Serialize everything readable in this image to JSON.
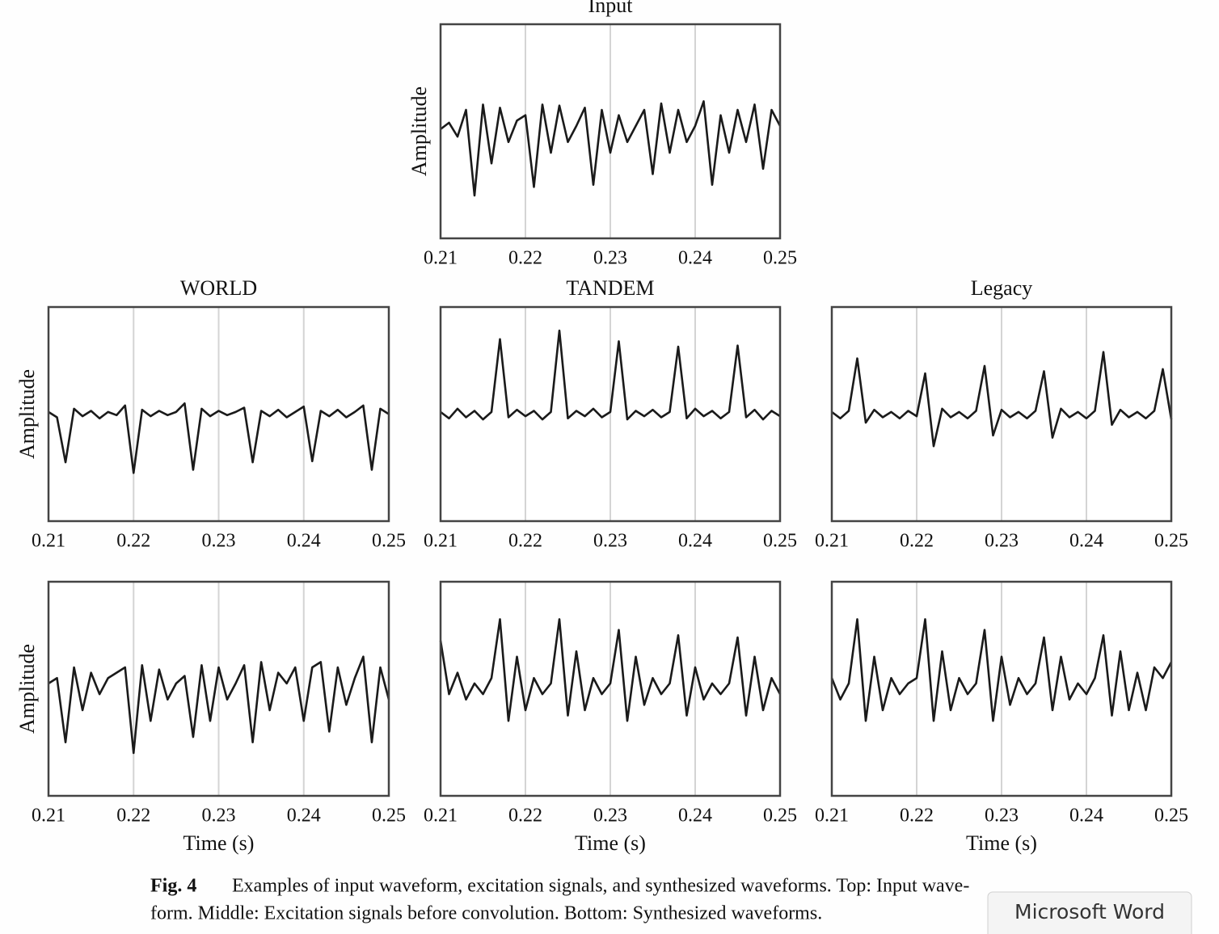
{
  "chart_data": [
    {
      "type": "line",
      "title": "Input",
      "ylabel": "Amplitude",
      "color": "#1a1a1a",
      "grid": true,
      "xlim": [
        0.21,
        0.25
      ],
      "xticks": [
        0.21,
        0.22,
        0.23,
        0.24,
        0.25
      ],
      "ylim": [
        -1,
        1
      ],
      "x": [
        0.21,
        0.211,
        0.212,
        0.213,
        0.214,
        0.215,
        0.216,
        0.217,
        0.218,
        0.219,
        0.22,
        0.221,
        0.222,
        0.223,
        0.224,
        0.225,
        0.226,
        0.227,
        0.228,
        0.229,
        0.23,
        0.231,
        0.232,
        0.233,
        0.234,
        0.235,
        0.236,
        0.237,
        0.238,
        0.239,
        0.24,
        0.241,
        0.242,
        0.243,
        0.244,
        0.245,
        0.246,
        0.247,
        0.248,
        0.249,
        0.25
      ],
      "values": [
        0.02,
        0.08,
        -0.05,
        0.2,
        -0.6,
        0.25,
        -0.3,
        0.22,
        -0.1,
        0.1,
        0.15,
        -0.52,
        0.25,
        -0.2,
        0.24,
        -0.1,
        0.05,
        0.22,
        -0.5,
        0.2,
        -0.2,
        0.15,
        -0.1,
        0.05,
        0.2,
        -0.4,
        0.26,
        -0.2,
        0.2,
        -0.1,
        0.05,
        0.28,
        -0.5,
        0.15,
        -0.2,
        0.2,
        -0.1,
        0.25,
        -0.35,
        0.2,
        0.05
      ]
    },
    {
      "type": "line",
      "title": "WORLD",
      "ylabel": "Amplitude",
      "color": "#1a1a1a",
      "grid": true,
      "xlim": [
        0.21,
        0.25
      ],
      "xticks": [
        0.21,
        0.22,
        0.23,
        0.24,
        0.25
      ],
      "ylim": [
        -1,
        1
      ],
      "x": [
        0.21,
        0.211,
        0.212,
        0.213,
        0.214,
        0.215,
        0.216,
        0.217,
        0.218,
        0.219,
        0.22,
        0.221,
        0.222,
        0.223,
        0.224,
        0.225,
        0.226,
        0.227,
        0.228,
        0.229,
        0.23,
        0.231,
        0.232,
        0.233,
        0.234,
        0.235,
        0.236,
        0.237,
        0.238,
        0.239,
        0.24,
        0.241,
        0.242,
        0.243,
        0.244,
        0.245,
        0.246,
        0.247,
        0.248,
        0.249,
        0.25
      ],
      "values": [
        0.02,
        -0.03,
        -0.45,
        0.05,
        -0.02,
        0.03,
        -0.04,
        0.02,
        -0.01,
        0.08,
        -0.55,
        0.04,
        -0.02,
        0.03,
        -0.01,
        0.02,
        0.1,
        -0.52,
        0.05,
        -0.02,
        0.03,
        -0.01,
        0.02,
        0.06,
        -0.45,
        0.03,
        -0.02,
        0.04,
        -0.03,
        0.02,
        0.07,
        -0.44,
        0.03,
        -0.02,
        0.04,
        -0.03,
        0.02,
        0.08,
        -0.52,
        0.05,
        0.0
      ]
    },
    {
      "type": "line",
      "title": "TANDEM",
      "color": "#1a1a1a",
      "grid": true,
      "xlim": [
        0.21,
        0.25
      ],
      "xticks": [
        0.21,
        0.22,
        0.23,
        0.24,
        0.25
      ],
      "ylim": [
        -1,
        1
      ],
      "x": [
        0.21,
        0.211,
        0.212,
        0.213,
        0.214,
        0.215,
        0.216,
        0.217,
        0.218,
        0.219,
        0.22,
        0.221,
        0.222,
        0.223,
        0.224,
        0.225,
        0.226,
        0.227,
        0.228,
        0.229,
        0.23,
        0.231,
        0.232,
        0.233,
        0.234,
        0.235,
        0.236,
        0.237,
        0.238,
        0.239,
        0.24,
        0.241,
        0.242,
        0.243,
        0.244,
        0.245,
        0.246,
        0.247,
        0.248,
        0.249,
        0.25
      ],
      "values": [
        0.02,
        -0.04,
        0.05,
        -0.03,
        0.03,
        -0.05,
        0.02,
        0.7,
        -0.03,
        0.04,
        -0.02,
        0.03,
        -0.05,
        0.02,
        0.78,
        -0.04,
        0.03,
        -0.02,
        0.05,
        -0.03,
        0.02,
        0.68,
        -0.05,
        0.03,
        -0.02,
        0.04,
        -0.03,
        0.02,
        0.63,
        -0.04,
        0.05,
        -0.02,
        0.03,
        -0.04,
        0.02,
        0.64,
        -0.03,
        0.04,
        -0.05,
        0.03,
        -0.02
      ]
    },
    {
      "type": "line",
      "title": "Legacy",
      "color": "#1a1a1a",
      "grid": true,
      "xlim": [
        0.21,
        0.25
      ],
      "xticks": [
        0.21,
        0.22,
        0.23,
        0.24,
        0.25
      ],
      "ylim": [
        -1,
        1
      ],
      "x": [
        0.21,
        0.211,
        0.212,
        0.213,
        0.214,
        0.215,
        0.216,
        0.217,
        0.218,
        0.219,
        0.22,
        0.221,
        0.222,
        0.223,
        0.224,
        0.225,
        0.226,
        0.227,
        0.228,
        0.229,
        0.23,
        0.231,
        0.232,
        0.233,
        0.234,
        0.235,
        0.236,
        0.237,
        0.238,
        0.239,
        0.24,
        0.241,
        0.242,
        0.243,
        0.244,
        0.245,
        0.246,
        0.247,
        0.248,
        0.249,
        0.25
      ],
      "values": [
        0.02,
        -0.04,
        0.03,
        0.52,
        -0.08,
        0.04,
        -0.03,
        0.02,
        -0.04,
        0.03,
        -0.02,
        0.38,
        -0.3,
        0.05,
        -0.03,
        0.02,
        -0.04,
        0.03,
        0.45,
        -0.2,
        0.04,
        -0.03,
        0.02,
        -0.04,
        0.03,
        0.4,
        -0.22,
        0.05,
        -0.03,
        0.02,
        -0.04,
        0.03,
        0.58,
        -0.1,
        0.04,
        -0.03,
        0.02,
        -0.04,
        0.03,
        0.42,
        -0.05
      ]
    },
    {
      "type": "line",
      "xlabel": "Time (s)",
      "ylabel": "Amplitude",
      "color": "#1a1a1a",
      "grid": true,
      "xlim": [
        0.21,
        0.25
      ],
      "xticks": [
        0.21,
        0.22,
        0.23,
        0.24,
        0.25
      ],
      "ylim": [
        -1,
        1
      ],
      "x": [
        0.21,
        0.211,
        0.212,
        0.213,
        0.214,
        0.215,
        0.216,
        0.217,
        0.218,
        0.219,
        0.22,
        0.221,
        0.222,
        0.223,
        0.224,
        0.225,
        0.226,
        0.227,
        0.228,
        0.229,
        0.23,
        0.231,
        0.232,
        0.233,
        0.234,
        0.235,
        0.236,
        0.237,
        0.238,
        0.239,
        0.24,
        0.241,
        0.242,
        0.243,
        0.244,
        0.245,
        0.246,
        0.247,
        0.248,
        0.249,
        0.25
      ],
      "values": [
        0.05,
        0.1,
        -0.5,
        0.2,
        -0.2,
        0.15,
        -0.05,
        0.1,
        0.15,
        0.2,
        -0.6,
        0.22,
        -0.3,
        0.18,
        -0.1,
        0.05,
        0.12,
        -0.45,
        0.22,
        -0.3,
        0.2,
        -0.1,
        0.05,
        0.22,
        -0.5,
        0.25,
        -0.2,
        0.15,
        0.05,
        0.2,
        -0.3,
        0.2,
        0.25,
        -0.4,
        0.2,
        -0.15,
        0.1,
        0.3,
        -0.5,
        0.2,
        -0.1
      ]
    },
    {
      "type": "line",
      "xlabel": "Time (s)",
      "color": "#1a1a1a",
      "grid": true,
      "xlim": [
        0.21,
        0.25
      ],
      "xticks": [
        0.21,
        0.22,
        0.23,
        0.24,
        0.25
      ],
      "ylim": [
        -1,
        1
      ],
      "x": [
        0.21,
        0.211,
        0.212,
        0.213,
        0.214,
        0.215,
        0.216,
        0.217,
        0.218,
        0.219,
        0.22,
        0.221,
        0.222,
        0.223,
        0.224,
        0.225,
        0.226,
        0.227,
        0.228,
        0.229,
        0.23,
        0.231,
        0.232,
        0.233,
        0.234,
        0.235,
        0.236,
        0.237,
        0.238,
        0.239,
        0.24,
        0.241,
        0.242,
        0.243,
        0.244,
        0.245,
        0.246,
        0.247,
        0.248,
        0.249,
        0.25
      ],
      "values": [
        0.45,
        -0.05,
        0.15,
        -0.1,
        0.05,
        -0.05,
        0.1,
        0.65,
        -0.3,
        0.3,
        -0.2,
        0.1,
        -0.05,
        0.05,
        0.65,
        -0.25,
        0.35,
        -0.2,
        0.1,
        -0.05,
        0.05,
        0.55,
        -0.3,
        0.3,
        -0.15,
        0.1,
        -0.05,
        0.05,
        0.5,
        -0.25,
        0.2,
        -0.1,
        0.05,
        -0.05,
        0.05,
        0.48,
        -0.25,
        0.3,
        -0.2,
        0.1,
        -0.05
      ]
    },
    {
      "type": "line",
      "xlabel": "Time (s)",
      "color": "#1a1a1a",
      "grid": true,
      "xlim": [
        0.21,
        0.25
      ],
      "xticks": [
        0.21,
        0.22,
        0.23,
        0.24,
        0.25
      ],
      "ylim": [
        -1,
        1
      ],
      "x": [
        0.21,
        0.211,
        0.212,
        0.213,
        0.214,
        0.215,
        0.216,
        0.217,
        0.218,
        0.219,
        0.22,
        0.221,
        0.222,
        0.223,
        0.224,
        0.225,
        0.226,
        0.227,
        0.228,
        0.229,
        0.23,
        0.231,
        0.232,
        0.233,
        0.234,
        0.235,
        0.236,
        0.237,
        0.238,
        0.239,
        0.24,
        0.241,
        0.242,
        0.243,
        0.244,
        0.245,
        0.246,
        0.247,
        0.248,
        0.249,
        0.25
      ],
      "values": [
        0.1,
        -0.1,
        0.05,
        0.65,
        -0.3,
        0.3,
        -0.2,
        0.1,
        -0.05,
        0.05,
        0.1,
        0.65,
        -0.3,
        0.35,
        -0.2,
        0.1,
        -0.05,
        0.05,
        0.55,
        -0.3,
        0.3,
        -0.15,
        0.1,
        -0.05,
        0.05,
        0.48,
        -0.2,
        0.3,
        -0.1,
        0.05,
        -0.05,
        0.1,
        0.5,
        -0.25,
        0.35,
        -0.2,
        0.15,
        -0.2,
        0.2,
        0.1,
        0.25
      ]
    }
  ],
  "caption": {
    "label": "Fig. 4",
    "lines": [
      "Examples of input waveform, excitation signals, and synthesized waveforms. Top: Input wave-",
      "form. Middle: Excitation signals before convolution. Bottom: Synthesized waveforms."
    ]
  },
  "badge": "Microsoft Word"
}
